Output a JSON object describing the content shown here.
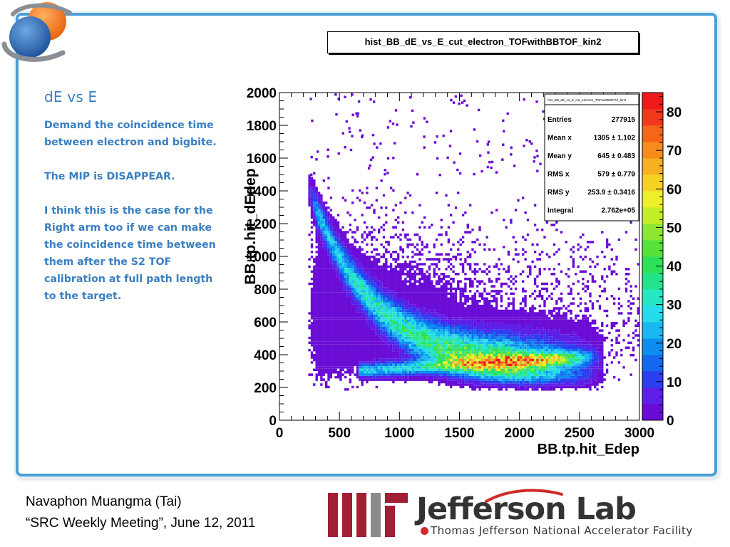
{
  "slide": {
    "title": "dE vs E",
    "paragraphs": [
      "Demand the coincidence time between electron and bigbite.",
      "The MIP is DISAPPEAR.",
      "I think this is the case for the Right arm too if we can make the coincidence time between them after the S2 TOF calibration at full path length  to the target."
    ],
    "footer_lines": [
      "Navaphon Muangma (Tai)",
      "“SRC Weekly Meeting”, June 12, 2011"
    ],
    "logos": {
      "institution_icon": "mit-logo-icon",
      "lab_name": "Jefferson Lab",
      "lab_subtitle": "Thomas Jefferson National Accelerator Facility"
    },
    "colors": {
      "text_blue": "#3a7fc1",
      "frame_blue": "#4a9fd6",
      "mit_red": "#a31f34",
      "jlab_red": "#d12a2a"
    }
  },
  "chart_data": {
    "type": "heatmap",
    "title": "hist_BB_dE_vs_E_cut_electron_TOFwithBBTOF_kin2",
    "xlabel": "BB.tp.hit_Edep",
    "ylabel": "BB.tp.hit_dEdep",
    "xlim": [
      0,
      3000
    ],
    "ylim": [
      0,
      2000
    ],
    "zlim": [
      0,
      85
    ],
    "x_ticks": [
      0,
      500,
      1000,
      1500,
      2000,
      2500,
      3000
    ],
    "y_ticks": [
      0,
      200,
      400,
      600,
      800,
      1000,
      1200,
      1400,
      1600,
      1800,
      2000
    ],
    "z_ticks": [
      0,
      10,
      20,
      30,
      40,
      50,
      60,
      70,
      80
    ],
    "colormap": [
      "#6a0cd6",
      "#5b1fe8",
      "#2b3ef0",
      "#1468f0",
      "#0d8df2",
      "#19b8f2",
      "#26dcea",
      "#25e8c2",
      "#22e38a",
      "#2ce05a",
      "#56e23a",
      "#8ce632",
      "#c2ee28",
      "#eef02a",
      "#f6d225",
      "#f7b020",
      "#f78b1b",
      "#f5651a",
      "#f2381a",
      "#ee1a1a"
    ],
    "grid": false,
    "description_of_bands": [
      {
        "name": "upper band",
        "points": [
          [
            300,
            1300
          ],
          [
            600,
            930
          ],
          [
            1000,
            720
          ],
          [
            1500,
            570
          ],
          [
            2000,
            470
          ],
          [
            2500,
            420
          ]
        ]
      },
      {
        "name": "lower band",
        "points": [
          [
            2600,
            400
          ],
          [
            2000,
            370
          ],
          [
            1500,
            340
          ],
          [
            1000,
            330
          ],
          [
            700,
            320
          ]
        ]
      }
    ],
    "stats_box": {
      "title": "hist_BB_dE_vs_E_cut_electron_TOFwithBBTOF_kin2",
      "entries": [
        {
          "label": "Entries",
          "value": "277915"
        },
        {
          "label": "Mean x",
          "value": "1305 ±  1.102"
        },
        {
          "label": "Mean y",
          "value": "645 ±  0.483"
        },
        {
          "label": "RMS x",
          "value": "579 ±  0.779"
        },
        {
          "label": "RMS y",
          "value": "253.9 ± 0.3416"
        },
        {
          "label": "Integral",
          "value": "2.762e+05"
        }
      ]
    }
  }
}
